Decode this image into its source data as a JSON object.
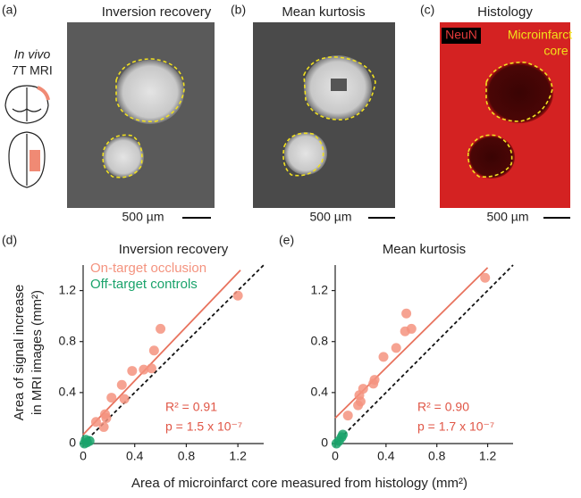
{
  "panels": {
    "a": {
      "label": "(a)",
      "title": "Inversion recovery",
      "scale": "500 µm"
    },
    "b": {
      "label": "(b)",
      "title": "Mean kurtosis",
      "scale": "500 µm"
    },
    "c": {
      "label": "(c)",
      "title": "Histology",
      "scale": "500 µm",
      "stain": "NeuN",
      "region": [
        "Microinfarct",
        "core"
      ]
    },
    "side": [
      "In vivo",
      "7T MRI"
    ]
  },
  "shared": {
    "ylabel": [
      "Area of signal increase",
      "in MRI images (mm²)"
    ],
    "xlabel": "Area of microinfarct core measured from histology (mm²)"
  },
  "chart_data": [
    {
      "type": "scatter",
      "panel": "(d)",
      "title": "Inversion recovery",
      "xlim": [
        0,
        1.4
      ],
      "ylim": [
        0,
        1.4
      ],
      "xticks": [
        0,
        0.4,
        0.8,
        1.2
      ],
      "yticks": [
        0,
        0.4,
        0.8,
        1.2
      ],
      "legend": "upper left",
      "series": [
        {
          "name": "On-target occlusion",
          "color": "#f4937f",
          "x": [
            0.1,
            0.16,
            0.17,
            0.18,
            0.22,
            0.3,
            0.32,
            0.38,
            0.47,
            0.53,
            0.55,
            0.6,
            1.2
          ],
          "values": [
            0.17,
            0.13,
            0.23,
            0.2,
            0.36,
            0.46,
            0.35,
            0.57,
            0.58,
            0.59,
            0.73,
            0.9,
            1.16
          ]
        },
        {
          "name": "Off-target controls",
          "color": "#1aa36b",
          "x": [
            0.01,
            0.03,
            0.05,
            0.02
          ],
          "values": [
            0.0,
            0.01,
            0.02,
            0.03
          ]
        }
      ],
      "fit": {
        "color": "#e8735e",
        "x": [
          0,
          1.22
        ],
        "y": [
          0.07,
          1.36
        ]
      },
      "annotations": [
        "R² = 0.91",
        "p = 1.5 x 10⁻⁷"
      ]
    },
    {
      "type": "scatter",
      "panel": "(e)",
      "title": "Mean kurtosis",
      "xlim": [
        0,
        1.4
      ],
      "ylim": [
        0,
        1.4
      ],
      "xticks": [
        0,
        0.4,
        0.8,
        1.2
      ],
      "yticks": [
        0,
        0.4,
        0.8,
        1.2
      ],
      "series": [
        {
          "color": "#f4937f",
          "x": [
            0.1,
            0.18,
            0.19,
            0.2,
            0.22,
            0.3,
            0.31,
            0.38,
            0.48,
            0.55,
            0.56,
            0.6,
            1.18
          ],
          "values": [
            0.22,
            0.3,
            0.38,
            0.33,
            0.43,
            0.47,
            0.5,
            0.68,
            0.75,
            0.88,
            1.02,
            0.9,
            1.3
          ]
        },
        {
          "color": "#1aa36b",
          "x": [
            0.01,
            0.03,
            0.06,
            0.05
          ],
          "values": [
            0.0,
            0.02,
            0.07,
            0.05
          ]
        }
      ],
      "fit": {
        "color": "#e8735e",
        "x": [
          0,
          1.2
        ],
        "y": [
          0.2,
          1.38
        ]
      },
      "annotations": [
        "R² = 0.90",
        "p = 1.7 x 10⁻⁷"
      ]
    }
  ]
}
